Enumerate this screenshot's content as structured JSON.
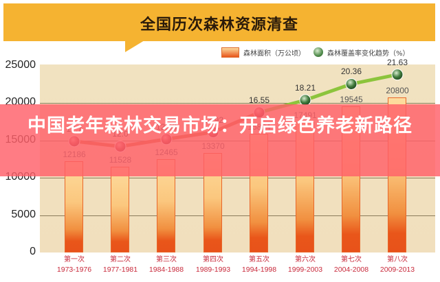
{
  "header": {
    "title": "全国历次森林资源清查"
  },
  "legend": {
    "area_label": "森林面积（万公顷）",
    "coverage_label": "森林覆盖率变化趋势（%）"
  },
  "y_axis": {
    "ticks": [
      "25000",
      "20000",
      "15000",
      "10000",
      "5000",
      "0"
    ]
  },
  "surveys": [
    {
      "name": "第一次",
      "years": "1973-1976",
      "area": "12186",
      "coverage": "12.7"
    },
    {
      "name": "第二次",
      "years": "1977-1981",
      "area": "11528",
      "coverage": "12.0"
    },
    {
      "name": "第三次",
      "years": "1984-1988",
      "area": "12465",
      "coverage": "12.98"
    },
    {
      "name": "第四次",
      "years": "1989-1993",
      "area": "13370",
      "coverage": "13.92"
    },
    {
      "name": "第五次",
      "years": "1994-1998",
      "area": "15894",
      "coverage": "16.55"
    },
    {
      "name": "第六次",
      "years": "1999-2003",
      "area": "17491",
      "coverage": "18.21"
    },
    {
      "name": "第七次",
      "years": "2004-2008",
      "area": "19545",
      "coverage": "20.36"
    },
    {
      "name": "第八次",
      "years": "2009-2013",
      "area": "20800",
      "coverage": "21.63"
    }
  ],
  "overlay": {
    "headline": "中国老年森林交易市场：开启绿色养老新路径"
  },
  "colors": {
    "header": "#f5b331",
    "bar_top": "#fddc9e",
    "bar_bottom": "#e8521a",
    "line_early": "#d4703a",
    "line_late": "#8cc43c",
    "point_red": "#c0484a",
    "point_green": "#3f7a3c",
    "x_label": "#c8283a",
    "banner": "#ff5f69"
  },
  "chart_data": {
    "type": "bar",
    "title": "全国历次森林资源清查",
    "categories": [
      "第一次 1973-1976",
      "第二次 1977-1981",
      "第三次 1984-1988",
      "第四次 1989-1993",
      "第五次 1994-1998",
      "第六次 1999-2003",
      "第七次 2004-2008",
      "第八次 2009-2013"
    ],
    "series": [
      {
        "name": "森林面积（万公顷）",
        "type": "bar",
        "values": [
          12186,
          11528,
          12465,
          13370,
          15894,
          17491,
          19545,
          20800
        ]
      },
      {
        "name": "森林覆盖率变化趋势（%）",
        "type": "line",
        "values": [
          12.7,
          12.0,
          12.98,
          13.92,
          16.55,
          18.21,
          20.36,
          21.63
        ]
      }
    ],
    "xlabel": "",
    "ylabel": "",
    "ylim": [
      0,
      25000
    ],
    "yticks": [
      0,
      5000,
      10000,
      15000,
      20000,
      25000
    ],
    "grid": true,
    "legend_position": "top-right"
  }
}
